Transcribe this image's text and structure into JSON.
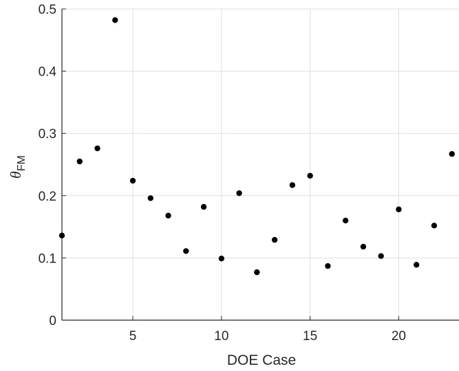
{
  "chart_data": {
    "type": "scatter",
    "xlabel": "DOE Case",
    "ylabel": {
      "symbol": "θ",
      "subscript": "FM"
    },
    "xlim": [
      1,
      23.4
    ],
    "ylim": [
      0,
      0.5
    ],
    "xticks": [
      5,
      10,
      15,
      20
    ],
    "yticks": [
      0,
      0.1,
      0.2,
      0.3,
      0.4,
      0.5
    ],
    "grid": true,
    "marker_color": "#000000",
    "series": [
      {
        "x": [
          1,
          2,
          3,
          4,
          5,
          6,
          7,
          8,
          9,
          10,
          11,
          12,
          13,
          14,
          15,
          16,
          17,
          18,
          19,
          20,
          21,
          22,
          23
        ],
        "values": [
          0.136,
          0.255,
          0.276,
          0.482,
          0.224,
          0.196,
          0.168,
          0.111,
          0.182,
          0.099,
          0.204,
          0.077,
          0.129,
          0.217,
          0.232,
          0.087,
          0.16,
          0.118,
          0.103,
          0.178,
          0.089,
          0.152,
          0.267
        ]
      }
    ]
  }
}
